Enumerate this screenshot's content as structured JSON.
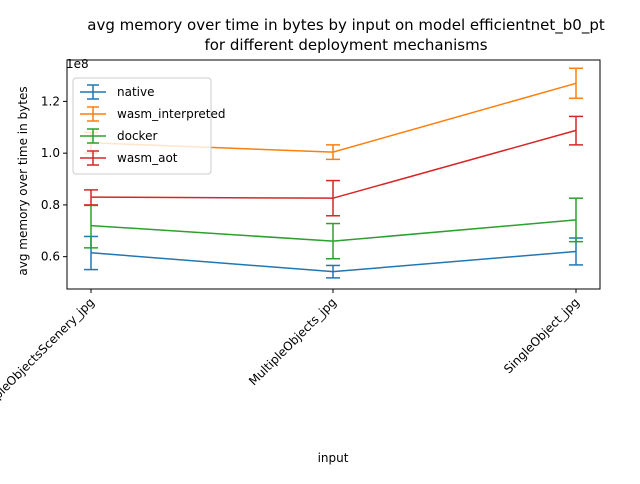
{
  "chart_data": {
    "type": "line",
    "title_line1": "avg memory over time in bytes by input on model efficientnet_b0_pt",
    "title_line2": "for different deployment mechanisms",
    "xlabel": "input",
    "ylabel": "avg memory over time in bytes",
    "y_offset_label": "1e8",
    "categories": [
      "MultipleObjectsScenery_jpg",
      "MultipleObjects_jpg",
      "SingleObject_jpg"
    ],
    "ylim": [
      0.475,
      1.36
    ],
    "yticks": [
      0.6,
      0.8,
      1.0,
      1.2
    ],
    "ytick_labels": [
      "0.6",
      "0.8",
      "1.0",
      "1.2"
    ],
    "grid": false,
    "legend_position": "top-left",
    "series": [
      {
        "name": "native",
        "color": "#1f77b4",
        "values": [
          0.615,
          0.542,
          0.62
        ],
        "err_low": [
          0.55,
          0.518,
          0.568
        ],
        "err_high": [
          0.678,
          0.566,
          0.672
        ]
      },
      {
        "name": "wasm_interpreted",
        "color": "#ff7f0e",
        "values": [
          1.04,
          1.004,
          1.27
        ],
        "err_low": [
          1.0,
          0.976,
          1.212
        ],
        "err_high": [
          1.08,
          1.032,
          1.328
        ]
      },
      {
        "name": "docker",
        "color": "#2ca02c",
        "values": [
          0.72,
          0.66,
          0.742
        ],
        "err_low": [
          0.634,
          0.592,
          0.658
        ],
        "err_high": [
          0.798,
          0.728,
          0.826
        ]
      },
      {
        "name": "wasm_aot",
        "color": "#d62728",
        "values": [
          0.83,
          0.826,
          1.088
        ],
        "err_low": [
          0.8,
          0.758,
          1.032
        ],
        "err_high": [
          0.858,
          0.894,
          1.142
        ]
      }
    ]
  }
}
